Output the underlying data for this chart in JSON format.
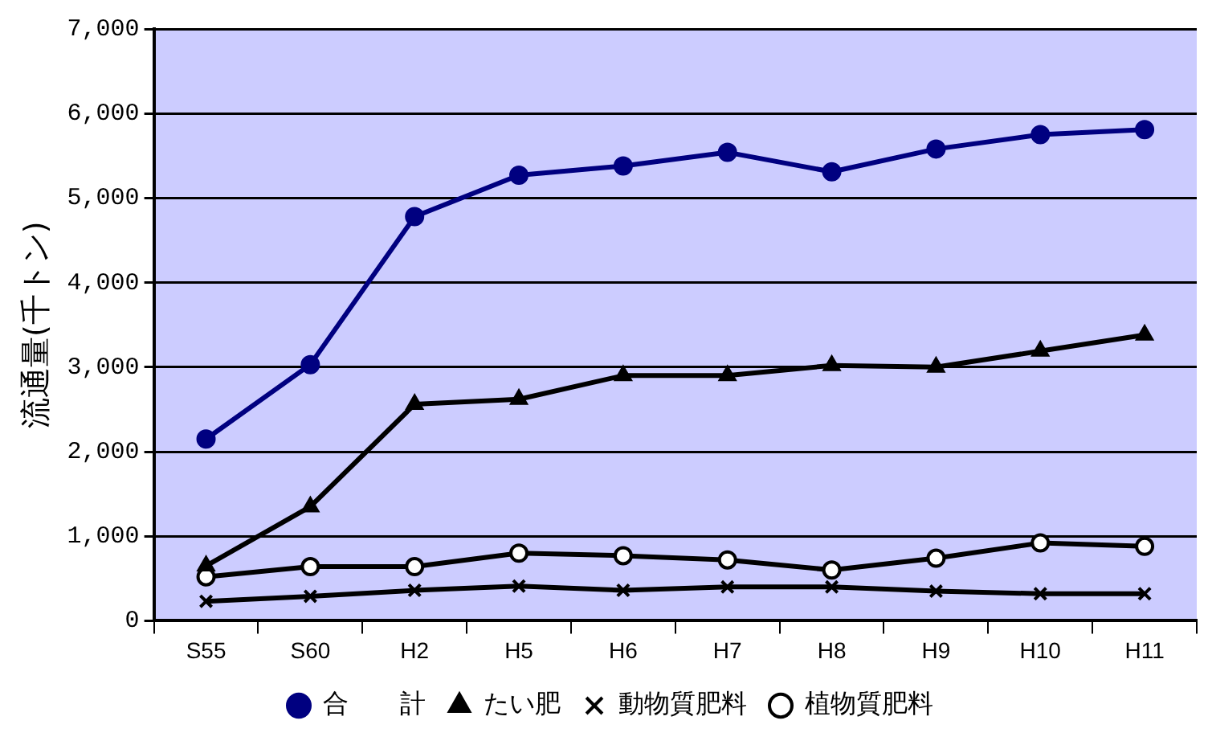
{
  "chart_data": {
    "type": "line",
    "ylabel": "流通量(千トン)",
    "categories": [
      "S55",
      "S60",
      "H2",
      "H5",
      "H6",
      "H7",
      "H8",
      "H9",
      "H10",
      "H11"
    ],
    "ylim": [
      0,
      7000
    ],
    "yticks": [
      0,
      {
        "value": 1000,
        "label": "1,000"
      },
      {
        "value": 2000,
        "label": "2,000"
      },
      {
        "value": 3000,
        "label": "3,000"
      },
      {
        "value": 4000,
        "label": "4,000"
      },
      {
        "value": 5000,
        "label": "5,000"
      },
      {
        "value": 6000,
        "label": "6,000"
      },
      {
        "value": 7000,
        "label": "7,000"
      }
    ],
    "grid": "y",
    "legend": "bottom",
    "line_style": "solid",
    "series": [
      {
        "name": "合　　計",
        "color": "#000080",
        "marker": "circle",
        "values": [
          2150,
          3030,
          4780,
          5270,
          5380,
          5540,
          5310,
          5580,
          5750,
          5810
        ]
      },
      {
        "name": "たい肥",
        "color": "#000000",
        "marker": "triangle",
        "values": [
          650,
          1350,
          2560,
          2620,
          2900,
          2900,
          3020,
          3000,
          3190,
          3380
        ]
      },
      {
        "name": "動物質肥料",
        "color": "#000000",
        "marker": "cross",
        "values": [
          230,
          290,
          360,
          410,
          360,
          400,
          400,
          350,
          320,
          320
        ]
      },
      {
        "name": "植物質肥料",
        "color": "#000000",
        "marker": "open-circle",
        "values": [
          520,
          640,
          640,
          800,
          770,
          720,
          600,
          740,
          920,
          880
        ]
      }
    ]
  }
}
